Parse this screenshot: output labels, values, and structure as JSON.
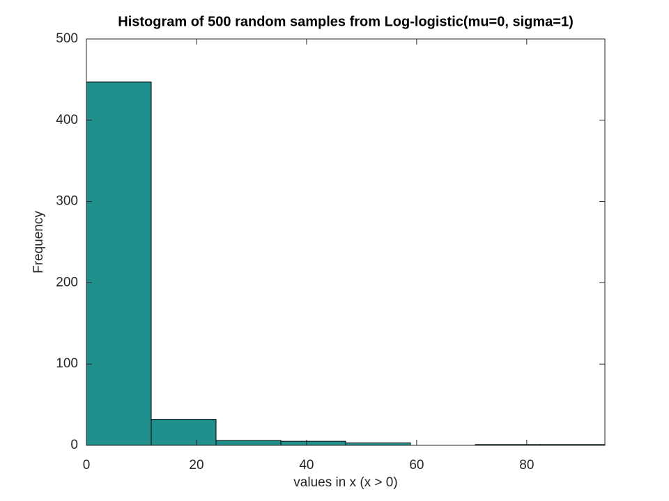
{
  "chart_data": {
    "type": "histogram",
    "title": "Histogram of 500 random samples from Log-logistic(mu=0, sigma=1)",
    "x_label": "values in x (x > 0)",
    "y_label": "Frequency",
    "bins": [
      0,
      11.775,
      23.55,
      35.325,
      47.1,
      58.875,
      70.65,
      82.425,
      94.2
    ],
    "values": [
      447,
      32,
      6,
      5,
      3,
      0,
      1,
      1
    ],
    "color": "#21908d",
    "edge_color": "#000000",
    "xlim": [
      0,
      94.2
    ],
    "ylim": [
      0,
      500
    ],
    "xticks": [
      0,
      20,
      40,
      60,
      80
    ],
    "yticks": [
      0,
      100,
      200,
      300,
      400,
      500
    ],
    "grid": false
  }
}
